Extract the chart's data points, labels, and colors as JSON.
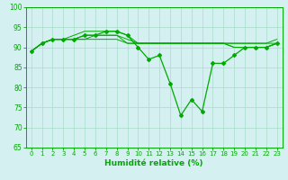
{
  "x": [
    0,
    1,
    2,
    3,
    4,
    5,
    6,
    7,
    8,
    9,
    10,
    11,
    12,
    13,
    14,
    15,
    16,
    17,
    18,
    19,
    20,
    21,
    22,
    23
  ],
  "series": [
    [
      89,
      91,
      92,
      92,
      92,
      93,
      93,
      94,
      94,
      93,
      90,
      87,
      88,
      81,
      73,
      77,
      74,
      86,
      86,
      88,
      90,
      90,
      90,
      91
    ],
    [
      89,
      91,
      92,
      92,
      92,
      92,
      93,
      93,
      93,
      91,
      91,
      91,
      91,
      91,
      91,
      91,
      91,
      91,
      91,
      91,
      91,
      91,
      91,
      91
    ],
    [
      89,
      91,
      92,
      92,
      92,
      93,
      93,
      93,
      93,
      92,
      91,
      91,
      91,
      91,
      91,
      91,
      91,
      91,
      91,
      91,
      91,
      91,
      91,
      92
    ],
    [
      89,
      91,
      92,
      92,
      93,
      94,
      94,
      94,
      94,
      93,
      91,
      91,
      91,
      91,
      91,
      91,
      91,
      91,
      91,
      90,
      90,
      90,
      90,
      91
    ],
    [
      89,
      91,
      92,
      92,
      92,
      92,
      92,
      92,
      92,
      91,
      91,
      91,
      91,
      91,
      91,
      91,
      91,
      91,
      91,
      90,
      90,
      90,
      90,
      91
    ]
  ],
  "line_color": "#00aa00",
  "marker_style": "D",
  "marker_size": 2,
  "bg_color": "#d4f0f0",
  "grid_color": "#aaddcc",
  "xlabel": "Humidité relative (%)",
  "ylim": [
    65,
    100
  ],
  "xlim": [
    -0.5,
    23.5
  ],
  "yticks": [
    65,
    70,
    75,
    80,
    85,
    90,
    95,
    100
  ],
  "xticks": [
    0,
    1,
    2,
    3,
    4,
    5,
    6,
    7,
    8,
    9,
    10,
    11,
    12,
    13,
    14,
    15,
    16,
    17,
    18,
    19,
    20,
    21,
    22,
    23
  ],
  "tick_fontsize": 5.5,
  "xlabel_fontsize": 6.5
}
